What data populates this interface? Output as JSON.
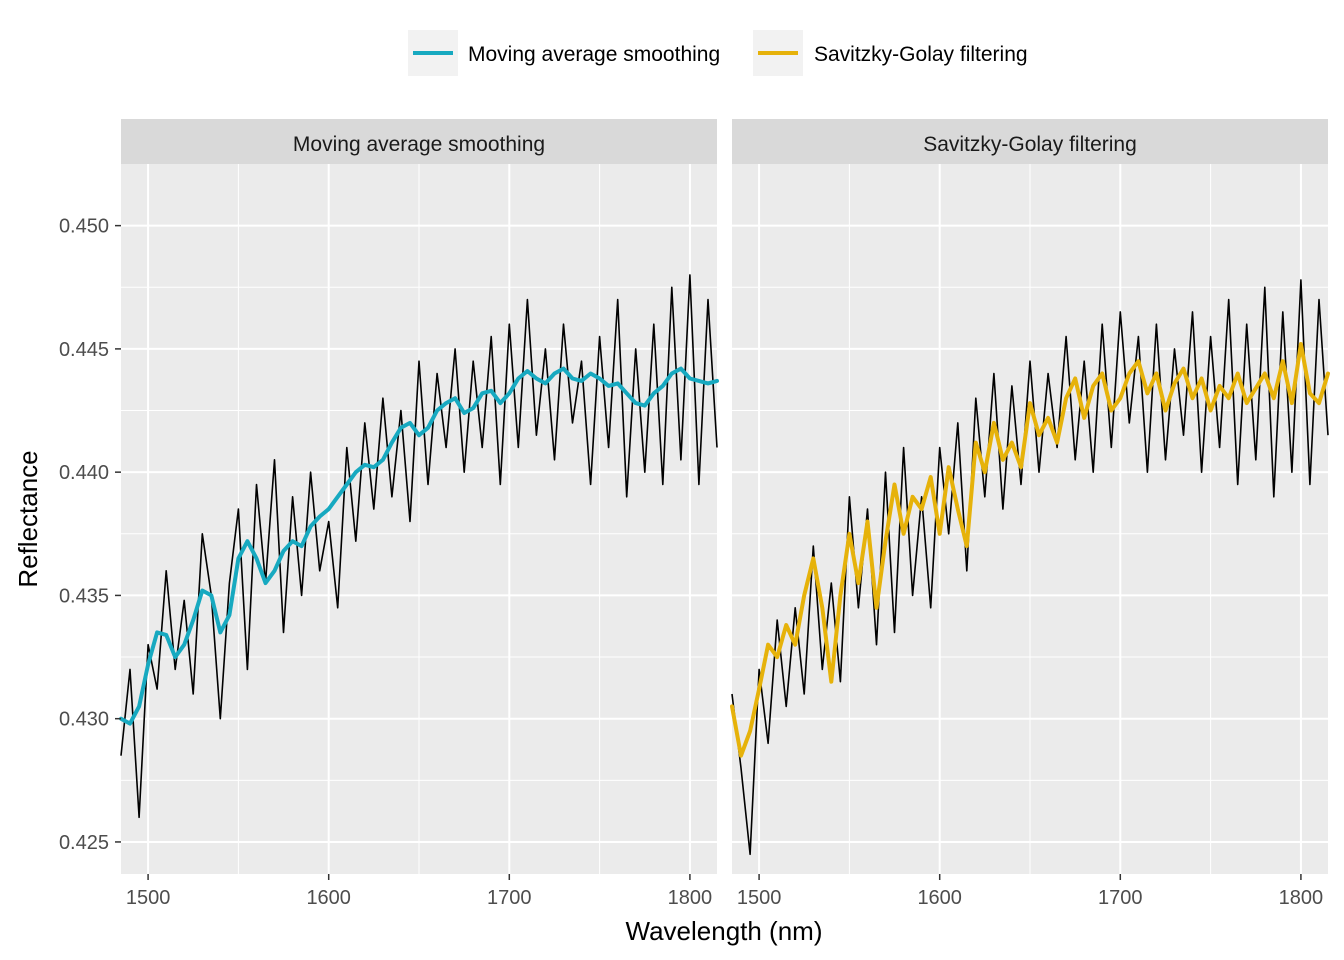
{
  "chart_data": {
    "type": "line",
    "xlabel": "Wavelength (nm)",
    "ylabel": "Reflectance",
    "xlim": [
      1485,
      1815
    ],
    "ylim": [
      0.4237,
      0.4525
    ],
    "x_ticks": [
      1500,
      1600,
      1700,
      1800
    ],
    "x_tick_labels": [
      "1500",
      "1600",
      "1700",
      "1800"
    ],
    "y_ticks": [
      0.425,
      0.43,
      0.435,
      0.44,
      0.445,
      0.45
    ],
    "y_tick_labels": [
      "0.425",
      "0.430",
      "0.435",
      "0.440",
      "0.445",
      "0.450"
    ],
    "grid": true,
    "legend": {
      "position": "top",
      "entries": [
        {
          "label": "Moving average smoothing",
          "color": "#17a9c0"
        },
        {
          "label": "Savitzky-Golay filtering",
          "color": "#e6b20a"
        }
      ]
    },
    "raw_series_color": "#000000",
    "panels": [
      {
        "strip": "Moving average smoothing",
        "smooth_color": "#17a9c0",
        "raw": {
          "x": [
            1485,
            1490,
            1495,
            1500,
            1505,
            1510,
            1515,
            1520,
            1525,
            1530,
            1535,
            1540,
            1545,
            1550,
            1555,
            1560,
            1565,
            1570,
            1575,
            1580,
            1585,
            1590,
            1595,
            1600,
            1605,
            1610,
            1615,
            1620,
            1625,
            1630,
            1635,
            1640,
            1645,
            1650,
            1655,
            1660,
            1665,
            1670,
            1675,
            1680,
            1685,
            1690,
            1695,
            1700,
            1705,
            1710,
            1715,
            1720,
            1725,
            1730,
            1735,
            1740,
            1745,
            1750,
            1755,
            1760,
            1765,
            1770,
            1775,
            1780,
            1785,
            1790,
            1795,
            1800,
            1805,
            1810,
            1815
          ],
          "y": [
            0.4285,
            0.432,
            0.426,
            0.433,
            0.4312,
            0.436,
            0.432,
            0.4348,
            0.431,
            0.4375,
            0.435,
            0.43,
            0.4355,
            0.4385,
            0.432,
            0.4395,
            0.4355,
            0.4405,
            0.4335,
            0.439,
            0.435,
            0.44,
            0.436,
            0.438,
            0.4345,
            0.441,
            0.4372,
            0.442,
            0.4385,
            0.443,
            0.439,
            0.4425,
            0.438,
            0.4445,
            0.4395,
            0.444,
            0.441,
            0.445,
            0.44,
            0.4445,
            0.441,
            0.4455,
            0.4395,
            0.446,
            0.441,
            0.447,
            0.4415,
            0.445,
            0.4405,
            0.446,
            0.442,
            0.4445,
            0.4395,
            0.4455,
            0.441,
            0.447,
            0.439,
            0.445,
            0.44,
            0.446,
            0.4395,
            0.4475,
            0.4405,
            0.448,
            0.4395,
            0.447,
            0.441
          ]
        },
        "smooth": {
          "x": [
            1485,
            1490,
            1495,
            1500,
            1505,
            1510,
            1515,
            1520,
            1525,
            1530,
            1535,
            1540,
            1545,
            1550,
            1555,
            1560,
            1565,
            1570,
            1575,
            1580,
            1585,
            1590,
            1595,
            1600,
            1605,
            1610,
            1615,
            1620,
            1625,
            1630,
            1635,
            1640,
            1645,
            1650,
            1655,
            1660,
            1665,
            1670,
            1675,
            1680,
            1685,
            1690,
            1695,
            1700,
            1705,
            1710,
            1715,
            1720,
            1725,
            1730,
            1735,
            1740,
            1745,
            1750,
            1755,
            1760,
            1765,
            1770,
            1775,
            1780,
            1785,
            1790,
            1795,
            1800,
            1805,
            1810,
            1815
          ],
          "y": [
            0.43,
            0.4298,
            0.4305,
            0.4322,
            0.4335,
            0.4334,
            0.4325,
            0.433,
            0.434,
            0.4352,
            0.435,
            0.4335,
            0.4342,
            0.4365,
            0.4372,
            0.4365,
            0.4355,
            0.436,
            0.4368,
            0.4372,
            0.437,
            0.4378,
            0.4382,
            0.4385,
            0.439,
            0.4395,
            0.44,
            0.4403,
            0.4402,
            0.4405,
            0.4412,
            0.4418,
            0.442,
            0.4415,
            0.4418,
            0.4425,
            0.4428,
            0.443,
            0.4424,
            0.4426,
            0.4432,
            0.4433,
            0.4428,
            0.4432,
            0.4438,
            0.4441,
            0.4438,
            0.4436,
            0.444,
            0.4442,
            0.4438,
            0.4437,
            0.444,
            0.4438,
            0.4435,
            0.4436,
            0.4432,
            0.4428,
            0.4427,
            0.4432,
            0.4435,
            0.444,
            0.4442,
            0.4438,
            0.4437,
            0.4436,
            0.4437
          ]
        }
      },
      {
        "strip": "Savitzky-Golay filtering",
        "smooth_color": "#e6b20a",
        "raw": {
          "x": [
            1485,
            1490,
            1495,
            1500,
            1505,
            1510,
            1515,
            1520,
            1525,
            1530,
            1535,
            1540,
            1545,
            1550,
            1555,
            1560,
            1565,
            1570,
            1575,
            1580,
            1585,
            1590,
            1595,
            1600,
            1605,
            1610,
            1615,
            1620,
            1625,
            1630,
            1635,
            1640,
            1645,
            1650,
            1655,
            1660,
            1665,
            1670,
            1675,
            1680,
            1685,
            1690,
            1695,
            1700,
            1705,
            1710,
            1715,
            1720,
            1725,
            1730,
            1735,
            1740,
            1745,
            1750,
            1755,
            1760,
            1765,
            1770,
            1775,
            1780,
            1785,
            1790,
            1795,
            1800,
            1805,
            1810,
            1815
          ],
          "y": [
            0.431,
            0.428,
            0.4245,
            0.432,
            0.429,
            0.434,
            0.4305,
            0.4345,
            0.431,
            0.437,
            0.432,
            0.4355,
            0.4315,
            0.439,
            0.4345,
            0.4385,
            0.433,
            0.44,
            0.4335,
            0.441,
            0.435,
            0.439,
            0.4345,
            0.441,
            0.4375,
            0.442,
            0.436,
            0.443,
            0.439,
            0.444,
            0.4385,
            0.4435,
            0.4395,
            0.4445,
            0.44,
            0.444,
            0.441,
            0.4455,
            0.4405,
            0.4445,
            0.44,
            0.446,
            0.441,
            0.4465,
            0.442,
            0.4455,
            0.44,
            0.446,
            0.4405,
            0.445,
            0.4415,
            0.4465,
            0.44,
            0.4455,
            0.441,
            0.447,
            0.4395,
            0.446,
            0.4405,
            0.4475,
            0.439,
            0.4465,
            0.44,
            0.4478,
            0.4395,
            0.447,
            0.4415
          ]
        },
        "smooth": {
          "x": [
            1485,
            1490,
            1495,
            1500,
            1505,
            1510,
            1515,
            1520,
            1525,
            1530,
            1535,
            1540,
            1545,
            1550,
            1555,
            1560,
            1565,
            1570,
            1575,
            1580,
            1585,
            1590,
            1595,
            1600,
            1605,
            1610,
            1615,
            1620,
            1625,
            1630,
            1635,
            1640,
            1645,
            1650,
            1655,
            1660,
            1665,
            1670,
            1675,
            1680,
            1685,
            1690,
            1695,
            1700,
            1705,
            1710,
            1715,
            1720,
            1725,
            1730,
            1735,
            1740,
            1745,
            1750,
            1755,
            1760,
            1765,
            1770,
            1775,
            1780,
            1785,
            1790,
            1795,
            1800,
            1805,
            1810,
            1815
          ],
          "y": [
            0.4305,
            0.4285,
            0.4295,
            0.4312,
            0.433,
            0.4325,
            0.4338,
            0.433,
            0.435,
            0.4365,
            0.4345,
            0.4315,
            0.435,
            0.4375,
            0.4355,
            0.438,
            0.4345,
            0.4372,
            0.4395,
            0.4375,
            0.439,
            0.4385,
            0.4398,
            0.4375,
            0.4402,
            0.4385,
            0.437,
            0.4412,
            0.44,
            0.442,
            0.4405,
            0.4412,
            0.4402,
            0.4428,
            0.4415,
            0.4422,
            0.4412,
            0.443,
            0.4438,
            0.4422,
            0.4435,
            0.444,
            0.4425,
            0.443,
            0.444,
            0.4445,
            0.4432,
            0.444,
            0.4425,
            0.4436,
            0.4442,
            0.443,
            0.4438,
            0.4425,
            0.4435,
            0.443,
            0.444,
            0.4428,
            0.4434,
            0.444,
            0.443,
            0.4445,
            0.4428,
            0.4452,
            0.4432,
            0.4428,
            0.444
          ]
        }
      }
    ]
  }
}
